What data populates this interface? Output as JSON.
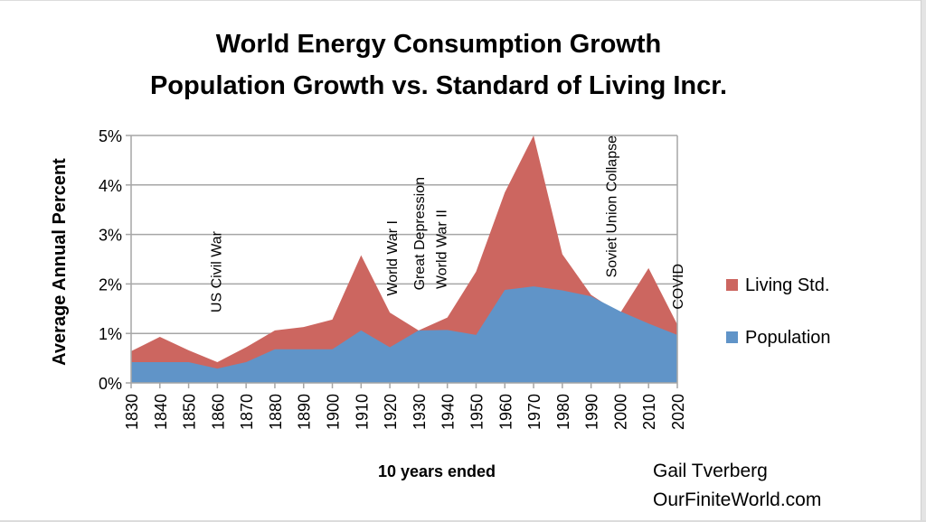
{
  "chart_data": {
    "type": "area",
    "stacked": true,
    "title": "World Energy Consumption Growth",
    "subtitle": "Population Growth vs. Standard of Living Incr.",
    "xlabel": "10 years ended",
    "ylabel": "Average Annual Percent",
    "ylim": [
      0,
      5
    ],
    "yticks": [
      "0%",
      "1%",
      "2%",
      "3%",
      "4%",
      "5%"
    ],
    "ytick_values": [
      0,
      1,
      2,
      3,
      4,
      5
    ],
    "grid": true,
    "legend_position": "right",
    "categories": [
      "1830",
      "1840",
      "1850",
      "1860",
      "1870",
      "1880",
      "1890",
      "1900",
      "1910",
      "1920",
      "1930",
      "1940",
      "1950",
      "1960",
      "1970",
      "1980",
      "1990",
      "2000",
      "2010",
      "2020"
    ],
    "series": [
      {
        "name": "Living Std.",
        "color": "#cc6660",
        "total_values": [
          0.64,
          0.93,
          0.66,
          0.42,
          0.72,
          1.06,
          1.13,
          1.28,
          2.58,
          1.42,
          1.06,
          1.32,
          2.25,
          3.85,
          5.0,
          2.6,
          1.78,
          1.4,
          2.32,
          1.18
        ]
      },
      {
        "name": "Population",
        "color": "#6094c8",
        "values": [
          0.42,
          0.42,
          0.42,
          0.29,
          0.42,
          0.68,
          0.68,
          0.68,
          1.06,
          0.72,
          1.06,
          1.07,
          0.97,
          1.88,
          1.95,
          1.87,
          1.75,
          1.45,
          1.2,
          0.97
        ]
      }
    ],
    "annotations": [
      {
        "text": "US Civil War",
        "x": "1860"
      },
      {
        "text": "World War I",
        "x": "1920"
      },
      {
        "text": "Great Depression",
        "x": "1930"
      },
      {
        "text": "World War II",
        "x": "1940"
      },
      {
        "text": "Soviet Union Collapse",
        "x": "2000"
      },
      {
        "text": "COVID",
        "x": "2020"
      }
    ],
    "credit": [
      "Gail Tverberg",
      "OurFiniteWorld.com"
    ]
  }
}
